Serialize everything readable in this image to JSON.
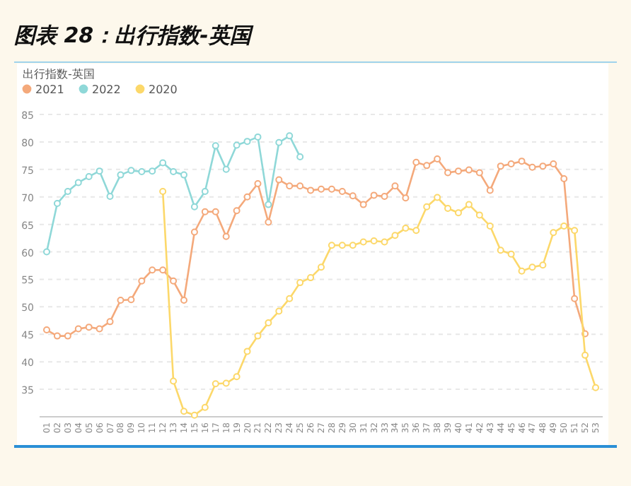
{
  "chart_data": {
    "type": "line",
    "title": "图表 28：出行指数-英国",
    "subtitle": "出行指数-英国",
    "categories": [
      "01",
      "02",
      "03",
      "04",
      "05",
      "06",
      "07",
      "08",
      "09",
      "10",
      "11",
      "12",
      "13",
      "14",
      "15",
      "16",
      "17",
      "18",
      "19",
      "20",
      "21",
      "22",
      "23",
      "24",
      "25",
      "26",
      "27",
      "28",
      "29",
      "30",
      "31",
      "32",
      "33",
      "34",
      "35",
      "36",
      "37",
      "38",
      "39",
      "40",
      "41",
      "42",
      "43",
      "44",
      "45",
      "46",
      "47",
      "48",
      "49",
      "50",
      "51",
      "52",
      "53"
    ],
    "series": [
      {
        "name": "2021",
        "color": "#f4a97b",
        "values": [
          45.8,
          44.7,
          44.7,
          46,
          46.3,
          46,
          47.3,
          51.2,
          51.3,
          54.7,
          56.7,
          56.7,
          54.7,
          51.2,
          63.6,
          67.3,
          67.3,
          62.8,
          67.5,
          70,
          72.4,
          65.4,
          73.1,
          72,
          72,
          71.2,
          71.4,
          71.4,
          71,
          70.2,
          68.6,
          70.3,
          70.1,
          72,
          69.8,
          76.3,
          75.7,
          76.9,
          74.4,
          74.7,
          74.9,
          74.4,
          71.2,
          75.6,
          76,
          76.5,
          75.4,
          75.6,
          76,
          73.3,
          51.5,
          45.1,
          null
        ]
      },
      {
        "name": "2022",
        "color": "#8fd8d8",
        "values": [
          60,
          68.8,
          71,
          72.6,
          73.7,
          74.7,
          70.1,
          74,
          74.8,
          74.6,
          74.7,
          76.2,
          74.6,
          74,
          68.2,
          71,
          79.3,
          75,
          79.4,
          80.1,
          80.9,
          68.6,
          79.9,
          81.1,
          77.3,
          null,
          null,
          null,
          null,
          null,
          null,
          null,
          null,
          null,
          null,
          null,
          null,
          null,
          null,
          null,
          null,
          null,
          null,
          null,
          null,
          null,
          null,
          null,
          null,
          null,
          null,
          null,
          null
        ]
      },
      {
        "name": "2020",
        "color": "#fcd86a",
        "values": [
          null,
          null,
          null,
          null,
          null,
          null,
          null,
          null,
          null,
          null,
          null,
          71,
          36.5,
          31,
          30.3,
          31.7,
          36,
          36.1,
          37.3,
          41.9,
          44.7,
          47.1,
          49.2,
          51.5,
          54.4,
          55.3,
          57.2,
          61.2,
          61.2,
          61.2,
          61.8,
          62,
          61.8,
          63,
          64.3,
          63.9,
          68.2,
          69.9,
          67.9,
          67.1,
          68.6,
          66.7,
          64.7,
          60.3,
          59.6,
          56.5,
          57.2,
          57.6,
          63.5,
          64.7,
          63.9,
          41.2,
          35.3
        ]
      }
    ],
    "ylim": [
      30,
      85
    ],
    "yticks": [
      35,
      40,
      45,
      50,
      55,
      60,
      65,
      70,
      75,
      80,
      85
    ],
    "grid": "y",
    "legend": "top left",
    "marker": "circle",
    "line_style": "solid"
  }
}
